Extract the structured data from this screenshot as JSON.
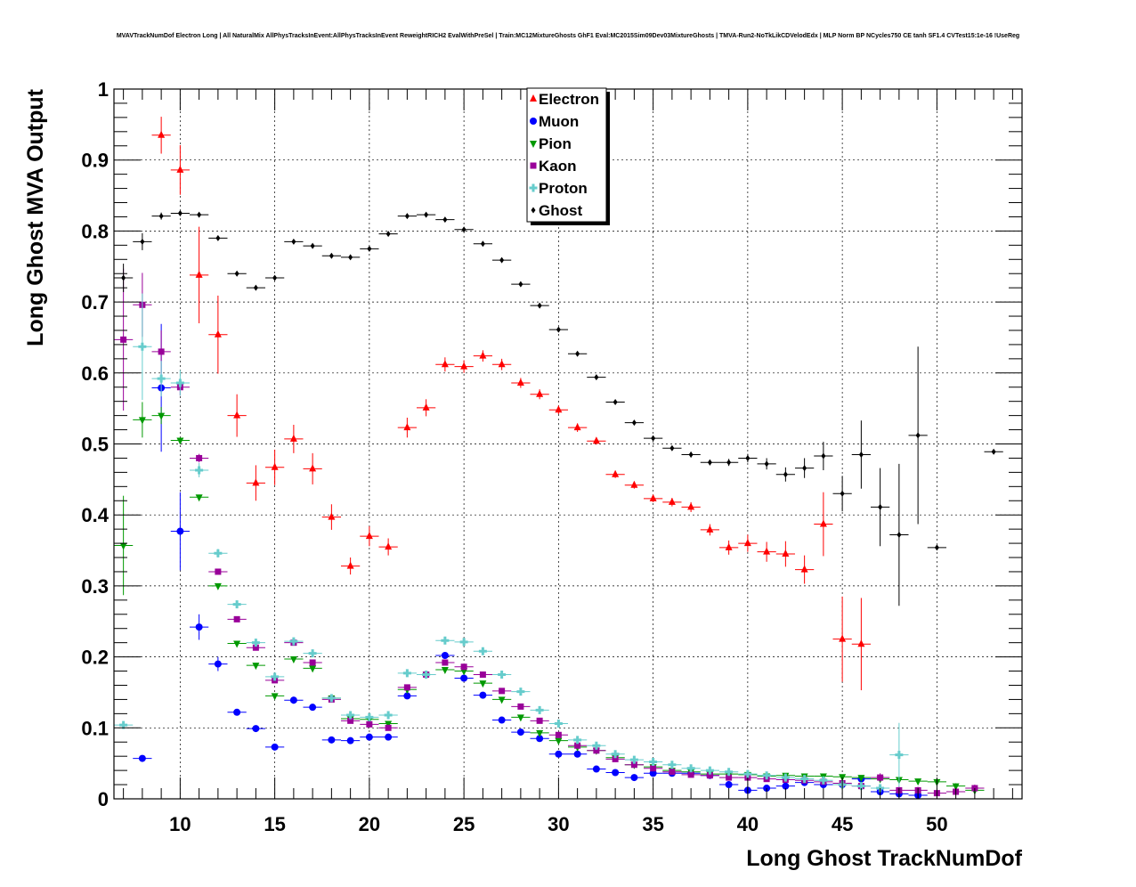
{
  "chart_data": {
    "type": "scatter",
    "title": "MVAVTrackNumDof Electron Long | All NaturalMix AllPhysTracksInEvent:AllPhysTracksInEvent ReweightRICH2 EvalWithPreSel | Train:MC12MixtureGhosts GhF1 Eval:MC2015Sim09Dev03MixtureGhosts | TMVA-Run2-NoTkLikCDVelodEdx | MLP Norm BP NCycles750 CE tanh SF1.4 CVTest15:1e-16 !UseReg",
    "xlabel": "Long Ghost TrackNumDof",
    "ylabel": "Long Ghost MVA Output",
    "xlim": [
      6.5,
      54.5
    ],
    "ylim": [
      0,
      1
    ],
    "xticks": [
      "10",
      "15",
      "20",
      "25",
      "30",
      "35",
      "40",
      "45",
      "50"
    ],
    "yticks": [
      "0",
      "0.1",
      "0.2",
      "0.3",
      "0.4",
      "0.5",
      "0.6",
      "0.7",
      "0.8",
      "0.9",
      "1"
    ],
    "grid": true,
    "legend_position": "top-center",
    "series": [
      {
        "name": "Electron",
        "color": "#ff0000",
        "marker": "triangle-up",
        "x": [
          9,
          10,
          11,
          12,
          13,
          14,
          15,
          16,
          17,
          18,
          19,
          20,
          21,
          22,
          23,
          24,
          25,
          26,
          27,
          28,
          29,
          30,
          31,
          32,
          33,
          34,
          35,
          36,
          37,
          38,
          39,
          40,
          41,
          42,
          43,
          44,
          45,
          46
        ],
        "y": [
          0.935,
          0.886,
          0.738,
          0.654,
          0.54,
          0.445,
          0.467,
          0.507,
          0.465,
          0.397,
          0.328,
          0.37,
          0.355,
          0.523,
          0.551,
          0.612,
          0.609,
          0.624,
          0.612,
          0.586,
          0.57,
          0.548,
          0.523,
          0.504,
          0.457,
          0.442,
          0.423,
          0.418,
          0.411,
          0.379,
          0.354,
          0.36,
          0.348,
          0.345,
          0.323,
          0.387,
          0.225,
          0.218
        ],
        "err": [
          0.026,
          0.035,
          0.068,
          0.055,
          0.03,
          0.025,
          0.025,
          0.02,
          0.022,
          0.018,
          0.012,
          0.014,
          0.012,
          0.014,
          0.012,
          0.01,
          0.009,
          0.008,
          0.008,
          0.007,
          0.007,
          0.006,
          0.006,
          0.005,
          0.005,
          0.005,
          0.005,
          0.006,
          0.007,
          0.008,
          0.01,
          0.012,
          0.014,
          0.018,
          0.02,
          0.045,
          0.06,
          0.065
        ]
      },
      {
        "name": "Muon",
        "color": "#0000ff",
        "marker": "circle",
        "x": [
          8,
          9,
          10,
          11,
          12,
          13,
          14,
          15,
          16,
          17,
          18,
          19,
          20,
          21,
          22,
          23,
          24,
          25,
          26,
          27,
          28,
          29,
          30,
          31,
          32,
          33,
          34,
          35,
          36,
          37,
          38,
          39,
          40,
          41,
          42,
          43,
          44,
          45,
          46,
          47,
          48,
          49
        ],
        "y": [
          0.057,
          0.579,
          0.377,
          0.242,
          0.19,
          0.122,
          0.099,
          0.073,
          0.139,
          0.129,
          0.083,
          0.082,
          0.087,
          0.087,
          0.145,
          0.175,
          0.202,
          0.17,
          0.146,
          0.111,
          0.094,
          0.085,
          0.063,
          0.063,
          0.042,
          0.037,
          0.03,
          0.036,
          0.036,
          0.036,
          0.033,
          0.02,
          0.012,
          0.015,
          0.018,
          0.023,
          0.02,
          0.02,
          0.028,
          0.01,
          0.007,
          0.005
        ],
        "err": [
          0.003,
          0.09,
          0.055,
          0.018,
          0.01,
          0.004,
          0.003,
          0.003,
          0.005,
          0.004,
          0.003,
          0.003,
          0.003,
          0.003,
          0.004,
          0.004,
          0.004,
          0.004,
          0.003,
          0.003,
          0.003,
          0.003,
          0.002,
          0.002,
          0.002,
          0.002,
          0.002,
          0.002,
          0.002,
          0.002,
          0.002,
          0.002,
          0.002,
          0.002,
          0.002,
          0.003,
          0.003,
          0.003,
          0.004,
          0.004,
          0.004,
          0.004
        ]
      },
      {
        "name": "Pion",
        "color": "#009900",
        "marker": "triangle-down",
        "x": [
          7,
          8,
          9,
          10,
          11,
          12,
          13,
          14,
          15,
          16,
          17,
          18,
          19,
          20,
          21,
          22,
          23,
          24,
          25,
          26,
          27,
          28,
          29,
          30,
          31,
          32,
          33,
          34,
          35,
          36,
          37,
          38,
          39,
          40,
          41,
          42,
          43,
          44,
          45,
          46,
          47,
          48,
          49,
          50,
          51,
          52
        ],
        "y": [
          0.357,
          0.534,
          0.54,
          0.505,
          0.425,
          0.3,
          0.219,
          0.188,
          0.145,
          0.197,
          0.184,
          0.142,
          0.113,
          0.112,
          0.106,
          0.154,
          0.175,
          0.182,
          0.18,
          0.163,
          0.14,
          0.115,
          0.093,
          0.082,
          0.073,
          0.068,
          0.058,
          0.048,
          0.045,
          0.04,
          0.038,
          0.035,
          0.035,
          0.034,
          0.032,
          0.033,
          0.032,
          0.032,
          0.031,
          0.03,
          0.028,
          0.027,
          0.025,
          0.024,
          0.018,
          0.012
        ],
        "err": [
          0.07,
          0.025,
          0.012,
          0.004,
          0.003,
          0.002,
          0.002,
          0.002,
          0.002,
          0.002,
          0.002,
          0.002,
          0.002,
          0.002,
          0.002,
          0.002,
          0.002,
          0.002,
          0.002,
          0.002,
          0.002,
          0.002,
          0.002,
          0.002,
          0.002,
          0.002,
          0.002,
          0.002,
          0.002,
          0.002,
          0.002,
          0.002,
          0.002,
          0.002,
          0.002,
          0.002,
          0.002,
          0.002,
          0.002,
          0.002,
          0.003,
          0.003,
          0.003,
          0.004,
          0.004,
          0.004
        ]
      },
      {
        "name": "Kaon",
        "color": "#990099",
        "marker": "square",
        "x": [
          7,
          8,
          9,
          10,
          11,
          12,
          13,
          14,
          15,
          16,
          17,
          18,
          19,
          20,
          21,
          22,
          23,
          24,
          25,
          26,
          27,
          28,
          29,
          30,
          31,
          32,
          33,
          34,
          35,
          36,
          37,
          38,
          39,
          40,
          41,
          42,
          43,
          44,
          45,
          46,
          47,
          48,
          49,
          50,
          51,
          52
        ],
        "y": [
          0.647,
          0.696,
          0.63,
          0.58,
          0.48,
          0.32,
          0.253,
          0.213,
          0.167,
          0.22,
          0.192,
          0.14,
          0.11,
          0.105,
          0.1,
          0.157,
          0.175,
          0.192,
          0.186,
          0.175,
          0.152,
          0.13,
          0.11,
          0.09,
          0.075,
          0.068,
          0.056,
          0.048,
          0.043,
          0.038,
          0.034,
          0.033,
          0.03,
          0.03,
          0.028,
          0.027,
          0.026,
          0.024,
          0.022,
          0.018,
          0.03,
          0.012,
          0.012,
          0.008,
          0.01,
          0.015
        ],
        "err": [
          0.1,
          0.045,
          0.03,
          0.012,
          0.006,
          0.004,
          0.003,
          0.003,
          0.003,
          0.003,
          0.003,
          0.003,
          0.003,
          0.003,
          0.003,
          0.003,
          0.003,
          0.003,
          0.003,
          0.003,
          0.003,
          0.003,
          0.003,
          0.003,
          0.003,
          0.003,
          0.003,
          0.003,
          0.003,
          0.003,
          0.003,
          0.003,
          0.003,
          0.003,
          0.003,
          0.003,
          0.003,
          0.003,
          0.003,
          0.004,
          0.006,
          0.005,
          0.005,
          0.004,
          0.004,
          0.005
        ]
      },
      {
        "name": "Proton",
        "color": "#66cccc",
        "marker": "cross",
        "x": [
          7,
          8,
          9,
          10,
          11,
          12,
          13,
          14,
          15,
          16,
          17,
          18,
          19,
          20,
          21,
          22,
          23,
          24,
          25,
          26,
          27,
          28,
          29,
          30,
          31,
          32,
          33,
          34,
          35,
          36,
          37,
          38,
          39,
          40,
          41,
          42,
          43,
          44,
          45,
          46,
          47,
          48
        ],
        "y": [
          0.104,
          0.637,
          0.592,
          0.586,
          0.463,
          0.346,
          0.274,
          0.22,
          0.172,
          0.222,
          0.205,
          0.142,
          0.118,
          0.115,
          0.118,
          0.177,
          0.175,
          0.223,
          0.221,
          0.208,
          0.175,
          0.151,
          0.125,
          0.106,
          0.083,
          0.075,
          0.063,
          0.055,
          0.052,
          0.048,
          0.043,
          0.04,
          0.038,
          0.035,
          0.033,
          0.03,
          0.028,
          0.026,
          0.02,
          0.018,
          0.015,
          0.062
        ],
        "err": [
          0.005,
          0.075,
          0.025,
          0.018,
          0.01,
          0.006,
          0.004,
          0.004,
          0.004,
          0.004,
          0.004,
          0.004,
          0.004,
          0.004,
          0.004,
          0.004,
          0.004,
          0.004,
          0.004,
          0.004,
          0.004,
          0.003,
          0.003,
          0.003,
          0.003,
          0.003,
          0.003,
          0.003,
          0.003,
          0.003,
          0.003,
          0.003,
          0.003,
          0.003,
          0.003,
          0.003,
          0.003,
          0.003,
          0.003,
          0.003,
          0.004,
          0.045
        ]
      },
      {
        "name": "Ghost",
        "color": "#000000",
        "marker": "diamond",
        "x": [
          7,
          8,
          9,
          10,
          11,
          12,
          13,
          14,
          15,
          16,
          17,
          18,
          19,
          20,
          21,
          22,
          23,
          24,
          25,
          26,
          27,
          28,
          29,
          30,
          31,
          32,
          33,
          34,
          35,
          36,
          37,
          38,
          39,
          40,
          41,
          42,
          43,
          44,
          45,
          46,
          47,
          48,
          49,
          50,
          53
        ],
        "y": [
          0.734,
          0.785,
          0.821,
          0.825,
          0.823,
          0.79,
          0.74,
          0.72,
          0.734,
          0.785,
          0.779,
          0.765,
          0.763,
          0.775,
          0.796,
          0.821,
          0.823,
          0.816,
          0.802,
          0.782,
          0.759,
          0.725,
          0.695,
          0.661,
          0.627,
          0.594,
          0.559,
          0.53,
          0.508,
          0.494,
          0.485,
          0.474,
          0.474,
          0.48,
          0.472,
          0.457,
          0.466,
          0.483,
          0.43,
          0.485,
          0.411,
          0.372,
          0.512,
          0.354,
          0.489
        ],
        "err": [
          0.02,
          0.012,
          0.005,
          0.003,
          0.002,
          0.002,
          0.002,
          0.002,
          0.002,
          0.002,
          0.002,
          0.002,
          0.002,
          0.002,
          0.002,
          0.002,
          0.002,
          0.002,
          0.002,
          0.002,
          0.002,
          0.002,
          0.002,
          0.002,
          0.002,
          0.002,
          0.002,
          0.002,
          0.003,
          0.003,
          0.004,
          0.004,
          0.005,
          0.006,
          0.008,
          0.01,
          0.014,
          0.02,
          0.025,
          0.048,
          0.055,
          0.1,
          0.125,
          0.0,
          0.0
        ]
      }
    ]
  }
}
